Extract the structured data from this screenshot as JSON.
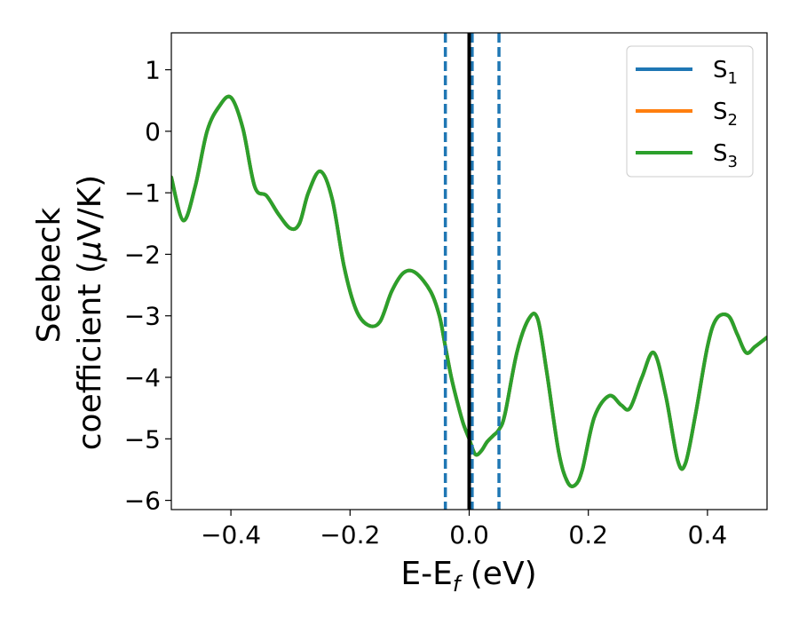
{
  "chart_data": {
    "type": "line",
    "title": "",
    "xlabel": "E-E",
    "xlabel_sub": "f",
    "xlabel_suffix": " (eV)",
    "ylabel_line1": "Seebeck",
    "ylabel_line2": "coefficient  (",
    "ylabel_mu": "μ",
    "ylabel_unit": "V/K)",
    "xlim": [
      -0.5,
      0.5
    ],
    "ylim": [
      -6.15,
      1.6
    ],
    "xticks": [
      -0.4,
      -0.2,
      0.0,
      0.2,
      0.4
    ],
    "xtick_labels": [
      "−0.4",
      "−0.2",
      "0.0",
      "0.2",
      "0.4"
    ],
    "yticks": [
      1,
      0,
      -1,
      -2,
      -3,
      -4,
      -5,
      -6
    ],
    "ytick_labels": [
      "1",
      "0",
      "−1",
      "−2",
      "−3",
      "−4",
      "−5",
      "−6"
    ],
    "grid": false,
    "legend_position": "top-right",
    "series": [
      {
        "name": "S",
        "subscript": "1",
        "color": "#1f77b4",
        "x": [
          -0.5,
          -0.48,
          -0.46,
          -0.44,
          -0.42,
          -0.4,
          -0.38,
          -0.36,
          -0.34,
          -0.32,
          -0.3,
          -0.285,
          -0.27,
          -0.25,
          -0.23,
          -0.21,
          -0.19,
          -0.17,
          -0.15,
          -0.13,
          -0.11,
          -0.09,
          -0.065,
          -0.05,
          -0.04,
          -0.03,
          -0.02,
          -0.01,
          0.0,
          0.01,
          0.02,
          0.03,
          0.04,
          0.05,
          0.06,
          0.08,
          0.1,
          0.115,
          0.13,
          0.15,
          0.165,
          0.178,
          0.19,
          0.21,
          0.235,
          0.255,
          0.27,
          0.29,
          0.31,
          0.33,
          0.35,
          0.363,
          0.38,
          0.4,
          0.415,
          0.435,
          0.45,
          0.465,
          0.48,
          0.5
        ],
        "y": [
          -0.75,
          -1.45,
          -0.9,
          0.0,
          0.4,
          0.55,
          0.05,
          -0.9,
          -1.05,
          -1.35,
          -1.58,
          -1.5,
          -1.0,
          -0.65,
          -1.1,
          -2.2,
          -2.9,
          -3.15,
          -3.1,
          -2.6,
          -2.3,
          -2.3,
          -2.6,
          -3.0,
          -3.5,
          -4.0,
          -4.4,
          -4.75,
          -5.0,
          -5.25,
          -5.2,
          -5.05,
          -4.95,
          -4.85,
          -4.6,
          -3.6,
          -3.05,
          -3.05,
          -3.9,
          -5.2,
          -5.7,
          -5.75,
          -5.5,
          -4.65,
          -4.3,
          -4.45,
          -4.5,
          -4.0,
          -3.6,
          -4.3,
          -5.35,
          -5.4,
          -4.6,
          -3.5,
          -3.05,
          -3.0,
          -3.3,
          -3.6,
          -3.5,
          -3.35
        ]
      },
      {
        "name": "S",
        "subscript": "2",
        "color": "#ff7f0e",
        "x": [
          -0.5,
          -0.48,
          -0.46,
          -0.44,
          -0.42,
          -0.4,
          -0.38,
          -0.36,
          -0.34,
          -0.32,
          -0.3,
          -0.285,
          -0.27,
          -0.25,
          -0.23,
          -0.21,
          -0.19,
          -0.17,
          -0.15,
          -0.13,
          -0.11,
          -0.09,
          -0.065,
          -0.05,
          -0.04,
          -0.03,
          -0.02,
          -0.01,
          0.0,
          0.01,
          0.02,
          0.03,
          0.04,
          0.05,
          0.06,
          0.08,
          0.1,
          0.115,
          0.13,
          0.15,
          0.165,
          0.178,
          0.19,
          0.21,
          0.235,
          0.255,
          0.27,
          0.29,
          0.31,
          0.33,
          0.35,
          0.363,
          0.38,
          0.4,
          0.415,
          0.435,
          0.45,
          0.465,
          0.48,
          0.5
        ],
        "y": [
          -0.75,
          -1.45,
          -0.9,
          0.0,
          0.4,
          0.55,
          0.05,
          -0.9,
          -1.05,
          -1.35,
          -1.58,
          -1.5,
          -1.0,
          -0.65,
          -1.1,
          -2.2,
          -2.9,
          -3.15,
          -3.1,
          -2.6,
          -2.3,
          -2.3,
          -2.6,
          -3.0,
          -3.5,
          -4.0,
          -4.4,
          -4.75,
          -5.0,
          -5.25,
          -5.2,
          -5.05,
          -4.95,
          -4.85,
          -4.6,
          -3.6,
          -3.05,
          -3.05,
          -3.9,
          -5.2,
          -5.7,
          -5.75,
          -5.5,
          -4.65,
          -4.3,
          -4.45,
          -4.5,
          -4.0,
          -3.6,
          -4.3,
          -5.35,
          -5.4,
          -4.6,
          -3.5,
          -3.05,
          -3.0,
          -3.3,
          -3.6,
          -3.5,
          -3.35
        ]
      },
      {
        "name": "S",
        "subscript": "3",
        "color": "#2ca02c",
        "x": [
          -0.5,
          -0.48,
          -0.46,
          -0.44,
          -0.42,
          -0.4,
          -0.38,
          -0.36,
          -0.34,
          -0.32,
          -0.3,
          -0.285,
          -0.27,
          -0.25,
          -0.23,
          -0.21,
          -0.19,
          -0.17,
          -0.15,
          -0.13,
          -0.11,
          -0.09,
          -0.065,
          -0.05,
          -0.04,
          -0.03,
          -0.02,
          -0.01,
          0.0,
          0.01,
          0.02,
          0.03,
          0.04,
          0.05,
          0.06,
          0.08,
          0.1,
          0.115,
          0.13,
          0.15,
          0.165,
          0.178,
          0.19,
          0.21,
          0.235,
          0.255,
          0.27,
          0.29,
          0.31,
          0.33,
          0.35,
          0.363,
          0.38,
          0.4,
          0.415,
          0.435,
          0.45,
          0.465,
          0.48,
          0.5
        ],
        "y": [
          -0.75,
          -1.45,
          -0.9,
          0.0,
          0.4,
          0.55,
          0.05,
          -0.9,
          -1.05,
          -1.35,
          -1.58,
          -1.5,
          -1.0,
          -0.65,
          -1.1,
          -2.2,
          -2.9,
          -3.15,
          -3.1,
          -2.6,
          -2.3,
          -2.3,
          -2.6,
          -3.0,
          -3.5,
          -4.0,
          -4.4,
          -4.75,
          -5.0,
          -5.25,
          -5.2,
          -5.05,
          -4.95,
          -4.85,
          -4.6,
          -3.6,
          -3.05,
          -3.05,
          -3.9,
          -5.2,
          -5.7,
          -5.75,
          -5.5,
          -4.65,
          -4.3,
          -4.45,
          -4.5,
          -4.0,
          -3.6,
          -4.3,
          -5.35,
          -5.4,
          -4.6,
          -3.5,
          -3.05,
          -3.0,
          -3.3,
          -3.6,
          -3.5,
          -3.35
        ]
      }
    ],
    "reference_lines": [
      {
        "x": -0.04,
        "style": "dashed",
        "color": "#1f77b4"
      },
      {
        "x": 0.005,
        "style": "dashed",
        "color": "#1f77b4"
      },
      {
        "x": 0.05,
        "style": "dashed",
        "color": "#1f77b4"
      },
      {
        "x": 0.0,
        "style": "solid",
        "color": "#000000"
      }
    ]
  }
}
